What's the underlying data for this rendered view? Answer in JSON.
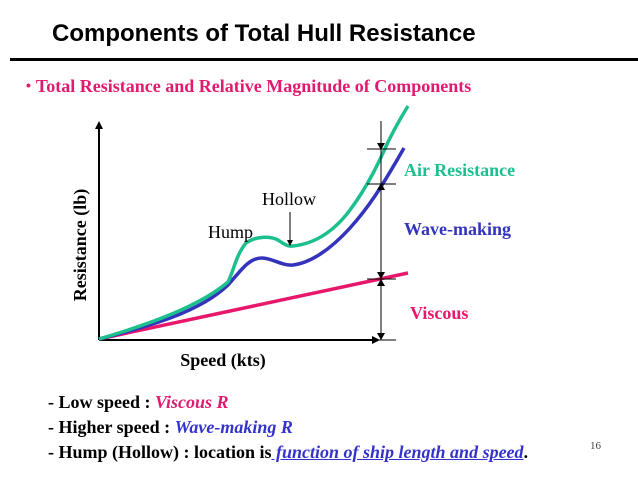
{
  "title": "Components of Total  Hull Resistance",
  "subtitle": {
    "bullet": "•",
    "text": "Total Resistance and Relative Magnitude of Components"
  },
  "diagram": {
    "ylabel": "Resistance (lb)",
    "xlabel": "Speed (kts)",
    "labels": {
      "air": "Air Resistance",
      "wave": "Wave-making",
      "viscous": "Viscous",
      "hump": "Hump",
      "hollow": "Hollow"
    },
    "colors": {
      "air": "#1dbf8f",
      "wave": "#3333bb",
      "viscous": "#e8176b",
      "axis": "#000000"
    }
  },
  "notes": [
    {
      "prefix": "- ",
      "text": "Low speed : ",
      "emph": "Viscous R",
      "emph_style": "pink",
      "suffix": ""
    },
    {
      "prefix": "- ",
      "text": "Higher speed : ",
      "emph": "Wave-making R",
      "emph_style": "blue",
      "suffix": ""
    },
    {
      "prefix": "- ",
      "text": "Hump (Hollow) : location is",
      "emph": " function of ship length and speed",
      "emph_style": "blue-ul",
      "suffix": "."
    }
  ],
  "page_number": "16"
}
